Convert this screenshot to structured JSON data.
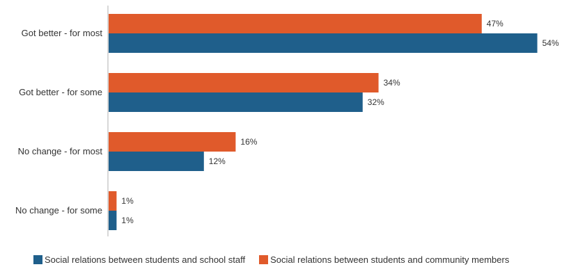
{
  "chart_data": {
    "type": "bar",
    "orientation": "horizontal",
    "categories": [
      "Got better - for most",
      "Got better - for some",
      "No change - for most",
      "No change - for some"
    ],
    "series": [
      {
        "name": "Social relations between students and community members",
        "color": "#e05a2b",
        "values": [
          47,
          34,
          16,
          1
        ],
        "labels": [
          "47%",
          "34%",
          "16%",
          "1%"
        ]
      },
      {
        "name": "Social relations between students and school staff",
        "color": "#1f5f8b",
        "values": [
          54,
          32,
          12,
          1
        ],
        "labels": [
          "54%",
          "32%",
          "12%",
          "1%"
        ]
      }
    ],
    "legend_order": [
      1,
      0
    ],
    "legend_position": "bottom",
    "xlim": [
      0,
      60
    ],
    "grid": false
  }
}
